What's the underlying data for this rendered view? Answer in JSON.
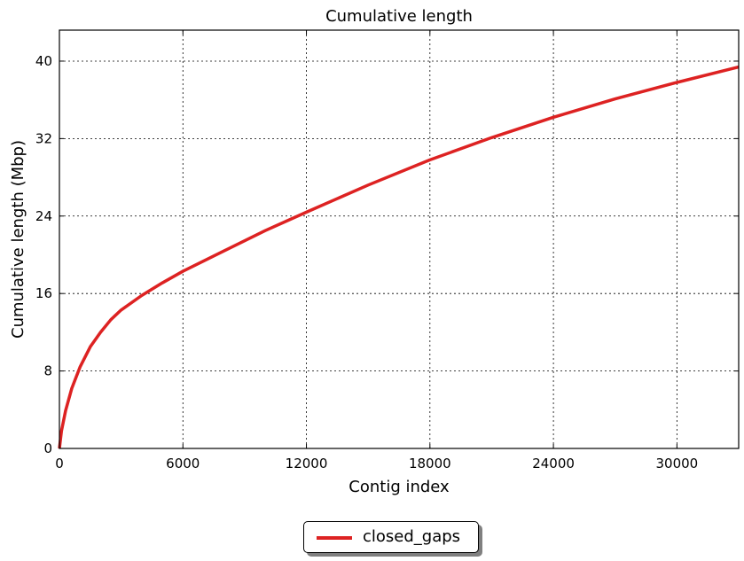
{
  "chart_data": {
    "type": "line",
    "title": "Cumulative length",
    "xlabel": "Contig index",
    "ylabel": "Cumulative length (Mbp)",
    "xlim": [
      0,
      33000
    ],
    "ylim": [
      0,
      43.2
    ],
    "xticks": [
      0,
      6000,
      12000,
      18000,
      24000,
      30000
    ],
    "yticks": [
      0,
      8,
      16,
      24,
      32,
      40
    ],
    "xtick_labels": [
      "0",
      "6000",
      "12000",
      "18000",
      "24000",
      "30000"
    ],
    "ytick_labels": [
      "0",
      "8",
      "16",
      "24",
      "32",
      "40"
    ],
    "grid": true,
    "legend_position": "below",
    "series": [
      {
        "name": "closed_gaps",
        "color": "#dd2222",
        "x": [
          0,
          100,
          300,
          600,
          1000,
          1500,
          2000,
          2500,
          3000,
          4000,
          5000,
          6000,
          8000,
          10000,
          12000,
          15000,
          18000,
          21000,
          24000,
          27000,
          30000,
          33000
        ],
        "y": [
          0,
          1.8,
          3.9,
          6.2,
          8.4,
          10.5,
          12.0,
          13.3,
          14.3,
          15.8,
          17.1,
          18.3,
          20.4,
          22.5,
          24.4,
          27.2,
          29.8,
          32.1,
          34.2,
          36.1,
          37.8,
          39.4
        ]
      }
    ]
  },
  "legend": {
    "label": "closed_gaps"
  }
}
